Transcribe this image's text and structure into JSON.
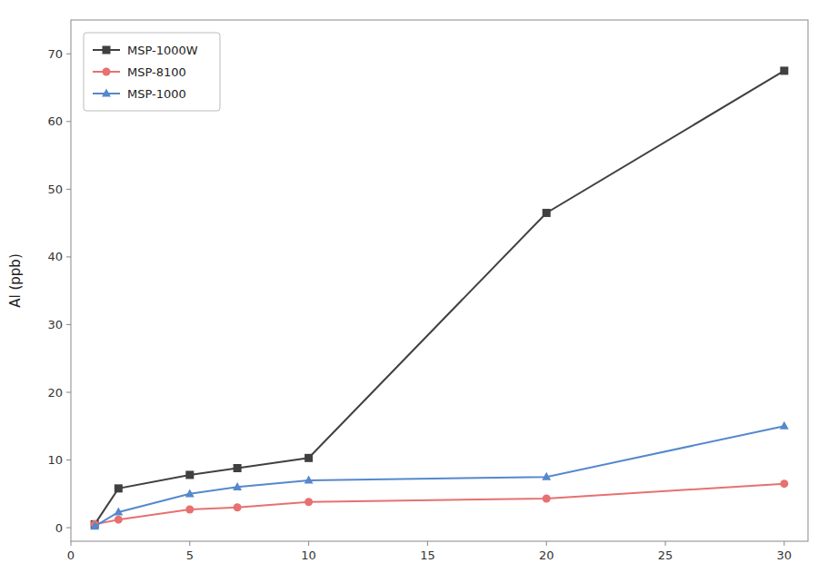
{
  "chart_data": {
    "type": "line",
    "ylabel": "Al (ppb)",
    "x": [
      1,
      2,
      5,
      7,
      10,
      20,
      30
    ],
    "series": [
      {
        "name": "MSP-1000W",
        "color": "#404040",
        "marker": "square",
        "values": [
          0.5,
          5.8,
          7.8,
          8.8,
          10.3,
          46.5,
          67.5
        ]
      },
      {
        "name": "MSP-8100",
        "color": "#e87070",
        "marker": "circle",
        "values": [
          0.5,
          1.2,
          2.7,
          3.0,
          3.8,
          4.3,
          6.5
        ]
      },
      {
        "name": "MSP-1000",
        "color": "#5588cc",
        "marker": "triangle",
        "values": [
          0.2,
          2.3,
          5.0,
          6.0,
          7.0,
          7.5,
          15.0
        ]
      }
    ],
    "xlim": [
      0,
      31
    ],
    "ylim": [
      -2,
      75
    ],
    "xticks": [
      0,
      5,
      10,
      15,
      20,
      25,
      30
    ],
    "yticks": [
      0,
      10,
      20,
      30,
      40,
      50,
      60,
      70
    ],
    "grid": false,
    "legend": "upper left"
  }
}
